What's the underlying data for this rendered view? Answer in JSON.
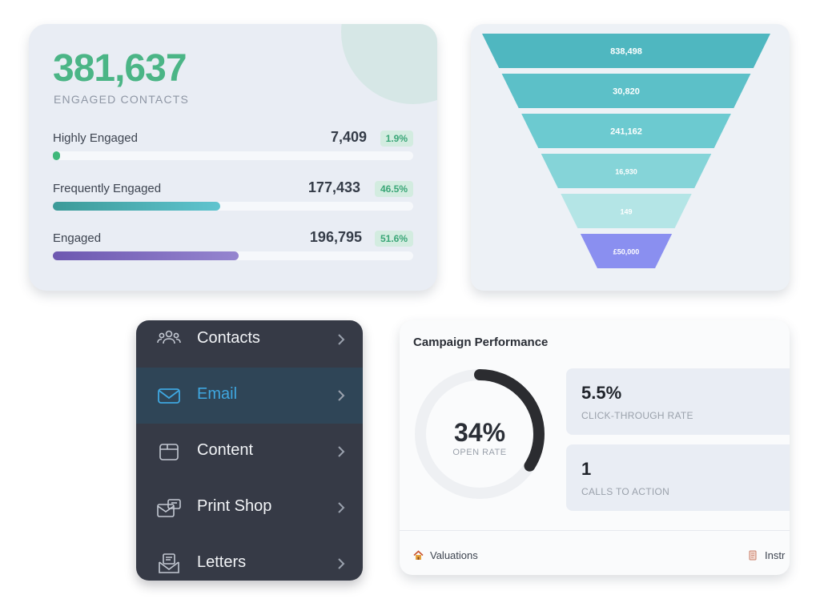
{
  "engagement": {
    "total_value": "381,637",
    "total_caption": "ENGAGED CONTACTS",
    "rows": [
      {
        "label": "Highly Engaged",
        "value": "7,409",
        "percent": "1.9%",
        "fill_fraction": 0.019,
        "color_from": "#3fb77a",
        "color_to": "#3fb77a"
      },
      {
        "label": "Frequently Engaged",
        "value": "177,433",
        "percent": "46.5%",
        "fill_fraction": 0.465,
        "color_from": "#3c9a98",
        "color_to": "#5fc4cf"
      },
      {
        "label": "Engaged",
        "value": "196,795",
        "percent": "51.6%",
        "fill_fraction": 0.516,
        "color_from": "#6d58b0",
        "color_to": "#9585cf"
      }
    ]
  },
  "funnel": {
    "stages": [
      {
        "value": "838,498",
        "color": "#4fb7c0"
      },
      {
        "value": "30,820",
        "color": "#5cc0c8"
      },
      {
        "value": "241,162",
        "color": "#6ccad0"
      },
      {
        "value": "16,930",
        "color": "#85d4d8"
      },
      {
        "value": "149",
        "color": "#b4e5e6"
      },
      {
        "value": "£50,000",
        "color": "#8a8ff0"
      }
    ]
  },
  "nav": {
    "items": [
      {
        "id": "contacts",
        "label": "Contacts",
        "icon": "contacts-icon",
        "active": false
      },
      {
        "id": "email",
        "label": "Email",
        "icon": "email-icon",
        "active": true
      },
      {
        "id": "content",
        "label": "Content",
        "icon": "content-box-icon",
        "active": false
      },
      {
        "id": "print-shop",
        "label": "Print Shop",
        "icon": "print-shop-icon",
        "active": false
      },
      {
        "id": "letters",
        "label": "Letters",
        "icon": "letters-icon",
        "active": false
      }
    ],
    "active_color": "#3fa7e0"
  },
  "campaign": {
    "title": "Campaign Performance",
    "open_rate": {
      "value": "34%",
      "label": "OPEN RATE",
      "fraction": 0.34
    },
    "stats": [
      {
        "value": "5.5%",
        "label": "CLICK-THROUGH RATE"
      },
      {
        "value": "1",
        "label": "CALLS TO ACTION"
      }
    ],
    "footer": [
      {
        "label": "Valuations",
        "icon": "house-icon"
      },
      {
        "label": "Instr",
        "icon": "document-icon"
      }
    ]
  }
}
